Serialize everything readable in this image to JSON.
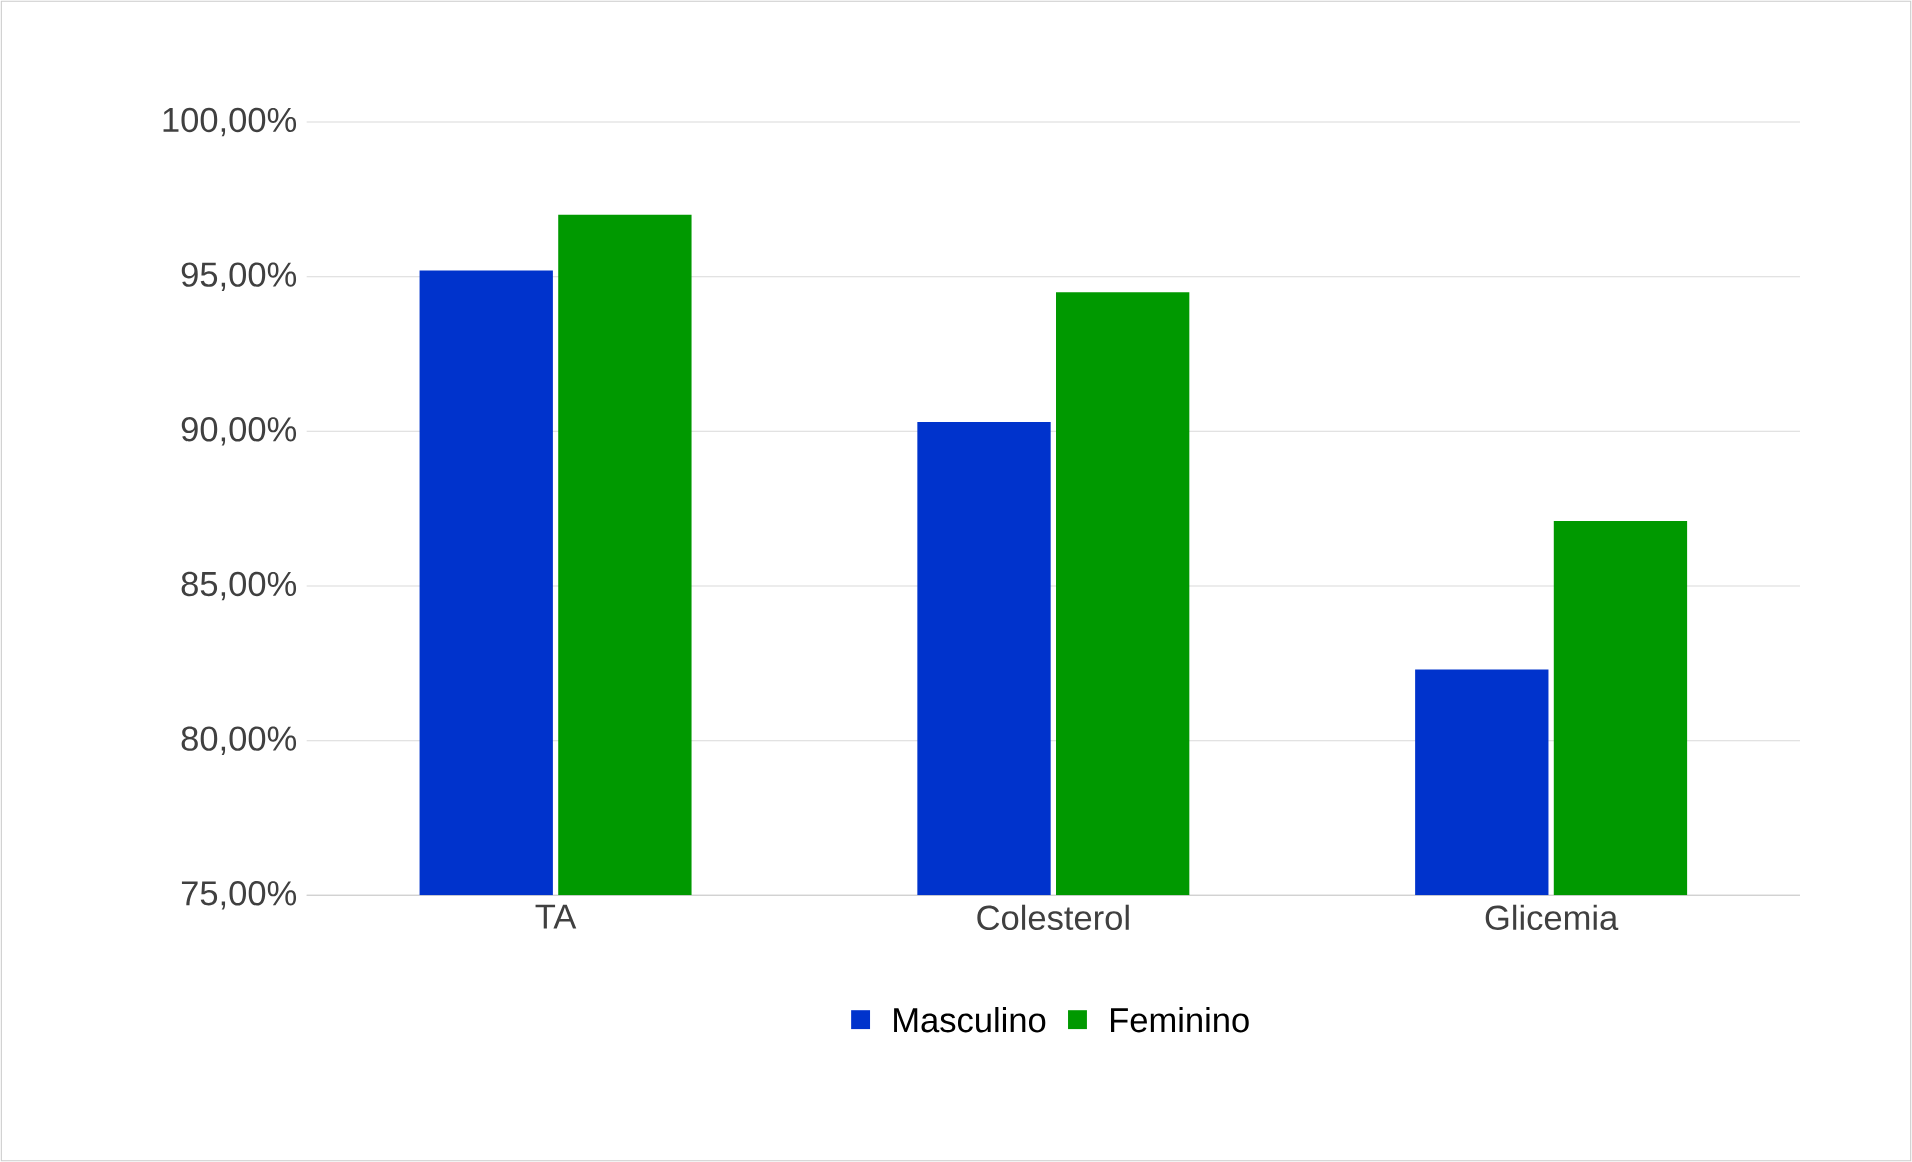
{
  "chart_data": {
    "type": "bar",
    "categories": [
      "TA",
      "Colesterol",
      "Glicemia"
    ],
    "series": [
      {
        "name": "Masculino",
        "color": "#0033cc",
        "values": [
          95.2,
          90.3,
          82.3
        ]
      },
      {
        "name": "Feminino",
        "color": "#009900",
        "values": [
          97.0,
          94.5,
          87.1
        ]
      }
    ],
    "ylim": [
      75,
      100
    ],
    "yticks": [
      {
        "value": 75,
        "label": "75,00%"
      },
      {
        "value": 80,
        "label": "80,00%"
      },
      {
        "value": 85,
        "label": "85,00%"
      },
      {
        "value": 90,
        "label": "90,00%"
      },
      {
        "value": 95,
        "label": "95,00%"
      },
      {
        "value": 100,
        "label": "100,00%"
      }
    ],
    "grid": "y",
    "legend": "bottom"
  }
}
